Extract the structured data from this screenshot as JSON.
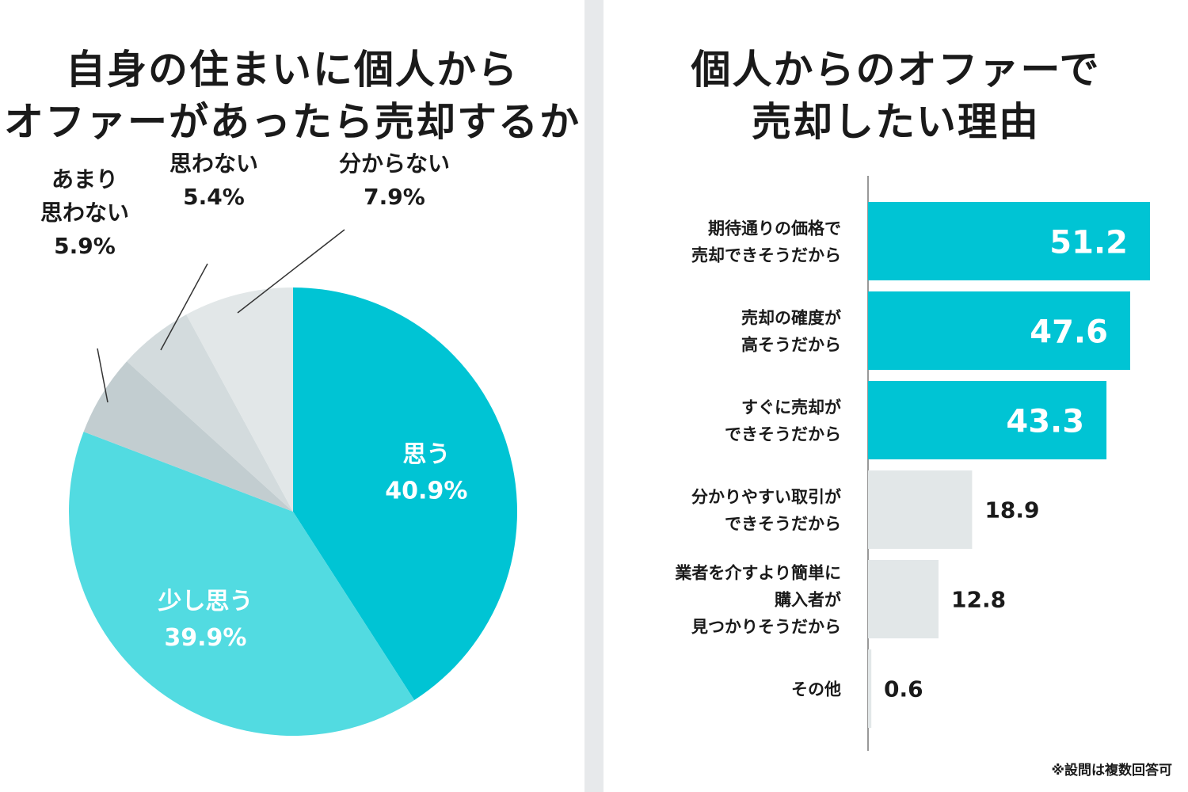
{
  "left_title": [
    "自身の住まいに個人から",
    "オファーがあったら売却するか"
  ],
  "right_title": [
    "個人からのオファーで",
    "売却したい理由"
  ],
  "note": "※設問は複数回答可",
  "colors": {
    "teal": "#00c4d4",
    "light_teal": "#52dbe1",
    "gray_1": "#c2cdd0",
    "gray_2": "#d3dbdd",
    "gray_3": "#e2e7e8",
    "bar_gray": "#e2e7e8",
    "divider": "#e7e9eb"
  },
  "chart_data": [
    {
      "type": "pie",
      "slices": [
        {
          "label": [
            "思う"
          ],
          "value": 40.9,
          "display": "40.9%",
          "color": "#00c4d4",
          "label_inside": true
        },
        {
          "label": [
            "少し思う"
          ],
          "value": 39.9,
          "display": "39.9%",
          "color": "#52dbe1",
          "label_inside": true
        },
        {
          "label": [
            "あまり",
            "思わない"
          ],
          "value": 5.9,
          "display": "5.9%",
          "color": "#c2cdd0",
          "label_inside": false
        },
        {
          "label": [
            "思わない"
          ],
          "value": 5.4,
          "display": "5.4%",
          "color": "#d3dbdd",
          "label_inside": false
        },
        {
          "label": [
            "分からない"
          ],
          "value": 7.9,
          "display": "7.9%",
          "color": "#e2e7e8",
          "label_inside": false
        }
      ]
    },
    {
      "type": "bar",
      "orientation": "horizontal",
      "categories": [
        [
          "期待通りの価格で",
          "売却できそうだから"
        ],
        [
          "売却の確度が",
          "高そうだから"
        ],
        [
          "すぐに売却が",
          "できそうだから"
        ],
        [
          "分かりやすい取引が",
          "できそうだから"
        ],
        [
          "業者を介すより簡単に",
          "購入者が",
          "見つかりそうだから"
        ],
        [
          "その他"
        ]
      ],
      "values": [
        51.2,
        47.6,
        43.3,
        18.9,
        12.8,
        0.6
      ],
      "highlight": [
        true,
        true,
        true,
        false,
        false,
        false
      ]
    }
  ]
}
